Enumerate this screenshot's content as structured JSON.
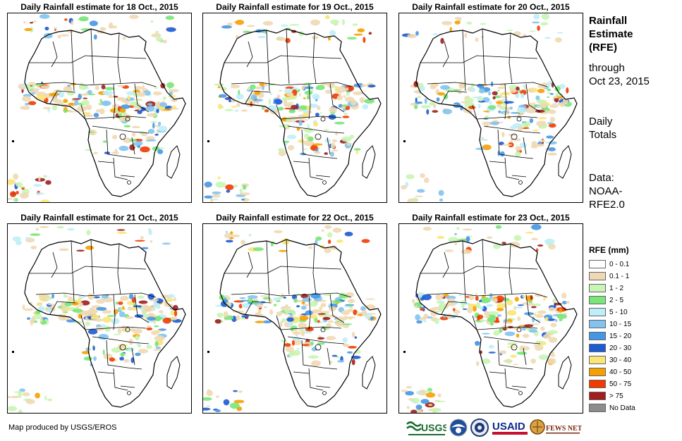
{
  "panels": [
    {
      "title": "Daily Rainfall estimate for 18 Oct., 2015"
    },
    {
      "title": "Daily Rainfall estimate for 19 Oct., 2015"
    },
    {
      "title": "Daily Rainfall estimate for 20 Oct., 2015"
    },
    {
      "title": "Daily Rainfall estimate for 21 Oct., 2015"
    },
    {
      "title": "Daily Rainfall estimate for 22 Oct., 2015"
    },
    {
      "title": "Daily Rainfall estimate for 23 Oct., 2015"
    }
  ],
  "side": {
    "title_line1": "Rainfall",
    "title_line2": "Estimate",
    "title_line3": "(RFE)",
    "through": "through",
    "date": "Oct 23, 2015",
    "daily": "Daily",
    "totals": "Totals",
    "data_label": "Data:",
    "source1": "NOAA-",
    "source2": "RFE2.0"
  },
  "legend": {
    "title": "RFE (mm)",
    "items": [
      {
        "label": "0 - 0.1",
        "color": "#ffffff"
      },
      {
        "label": "0.1 - 1",
        "color": "#efd9b4"
      },
      {
        "label": "1 - 2",
        "color": "#c8f5b4"
      },
      {
        "label": "2 - 5",
        "color": "#78e678"
      },
      {
        "label": "5 - 10",
        "color": "#bfeefa"
      },
      {
        "label": "10 - 15",
        "color": "#82c3f0"
      },
      {
        "label": "15 - 20",
        "color": "#4696e6"
      },
      {
        "label": "20 - 30",
        "color": "#1e5ad2"
      },
      {
        "label": "30 - 40",
        "color": "#fae678"
      },
      {
        "label": "40 - 50",
        "color": "#f5a000"
      },
      {
        "label": "50 - 75",
        "color": "#f03c00"
      },
      {
        "label": "> 75",
        "color": "#a01e1e"
      },
      {
        "label": "No Data",
        "color": "#8c8c8c"
      }
    ]
  },
  "footer": {
    "credit": "Map produced by USGS/EROS",
    "logo_usgs": "USGS",
    "logo_usaid": "USAID",
    "logo_fews": "FEWS NET"
  }
}
